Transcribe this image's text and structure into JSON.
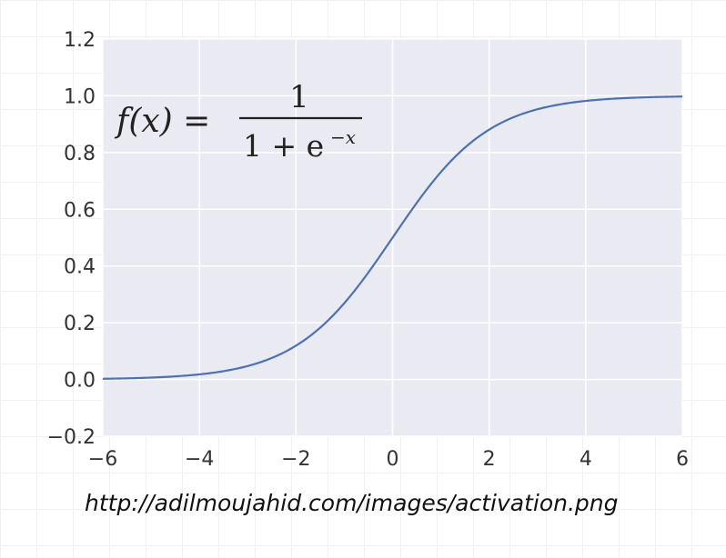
{
  "chart_data": {
    "type": "line",
    "title": "",
    "xlabel": "",
    "ylabel": "",
    "xlim": [
      -6,
      6
    ],
    "ylim": [
      -0.2,
      1.2
    ],
    "xticks": [
      "−6",
      "−4",
      "−2",
      "0",
      "2",
      "4",
      "6"
    ],
    "xtick_values": [
      -6,
      -4,
      -2,
      0,
      2,
      4,
      6
    ],
    "yticks": [
      "−0.2",
      "0.0",
      "0.2",
      "0.4",
      "0.6",
      "0.8",
      "1.0",
      "1.2"
    ],
    "ytick_values": [
      -0.2,
      0.0,
      0.2,
      0.4,
      0.6,
      0.8,
      1.0,
      1.2
    ],
    "grid": true,
    "series": [
      {
        "function": "1/(1+exp(-x))",
        "x": [
          -6,
          -5,
          -4,
          -3,
          -2,
          -1,
          0,
          1,
          2,
          3,
          4,
          5,
          6
        ],
        "values": [
          0.0025,
          0.0067,
          0.018,
          0.047,
          0.119,
          0.269,
          0.5,
          0.731,
          0.881,
          0.953,
          0.982,
          0.993,
          0.9975
        ],
        "color": "#4c72b0"
      }
    ],
    "annotation": {
      "lhs": "f(x) =",
      "numerator": "1",
      "denominator": "1 + e",
      "exponent": "−x"
    },
    "background_color": "#eaeaf2",
    "grid_color": "#ffffff"
  },
  "caption": {
    "url": "http://adilmoujahid.com/images/activation.png"
  }
}
